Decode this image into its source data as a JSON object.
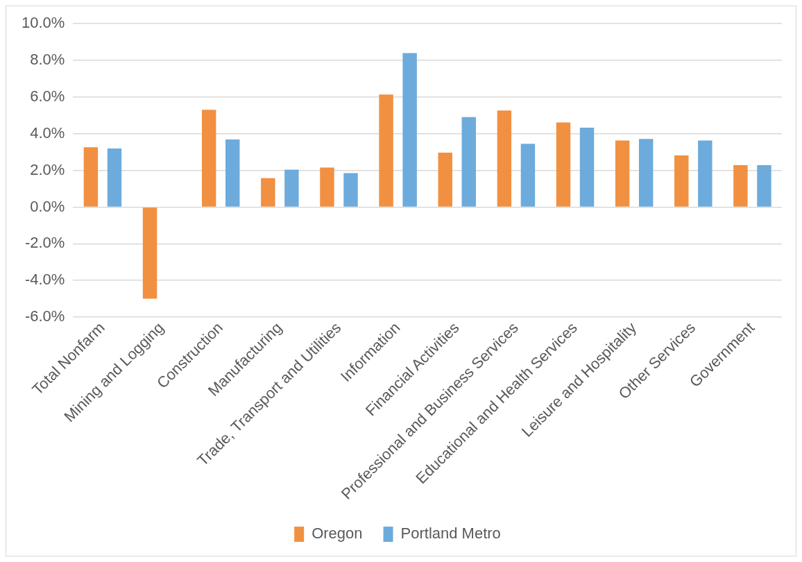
{
  "chart_data": {
    "type": "bar",
    "categories": [
      "Total Nonfarm",
      "Mining and Logging",
      "Construction",
      "Manufacturing",
      "Trade, Transport and Utilities",
      "Information",
      "Financial Activities",
      "Professional and Business Services",
      "Educational and Health Services",
      "Leisure and Hospitality",
      "Other Services",
      "Government"
    ],
    "series": [
      {
        "name": "Oregon",
        "color": "#f19041",
        "values": [
          3.26,
          -5.0,
          5.31,
          1.58,
          2.16,
          6.14,
          2.97,
          5.27,
          4.62,
          3.63,
          2.82,
          2.29
        ]
      },
      {
        "name": "Portland Metro",
        "color": "#6cabdc",
        "values": [
          3.2,
          null,
          3.69,
          2.04,
          1.85,
          8.4,
          4.91,
          3.45,
          4.33,
          3.72,
          3.63,
          2.29
        ]
      }
    ],
    "ylim": [
      -6,
      10
    ],
    "yticks": [
      {
        "value": -6,
        "label": "-6.0%"
      },
      {
        "value": -4,
        "label": "-4.0%"
      },
      {
        "value": -2,
        "label": "-2.0%"
      },
      {
        "value": 0,
        "label": "0.0%"
      },
      {
        "value": 2,
        "label": "2.0%"
      },
      {
        "value": 4,
        "label": "4.0%"
      },
      {
        "value": 6,
        "label": "6.0%"
      },
      {
        "value": 8,
        "label": "8.0%"
      },
      {
        "value": 10,
        "label": "10.0%"
      }
    ],
    "grid": "y",
    "legend": "bottom"
  }
}
